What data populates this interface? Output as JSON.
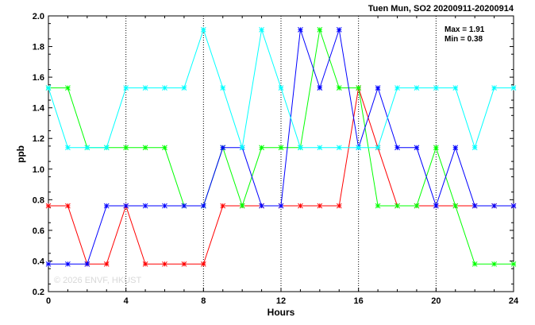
{
  "chart_data": {
    "type": "line",
    "title": "Tuen Mun, SO2 20200911-20200914",
    "xlabel": "Hours",
    "ylabel": "ppb",
    "xlim": [
      0,
      24
    ],
    "ylim": [
      0.2,
      2.0
    ],
    "xticks": [
      "0",
      "4",
      "8",
      "12",
      "16",
      "20",
      "24"
    ],
    "yticks": [
      "0.2",
      "0.4",
      "0.6",
      "0.8",
      "1.0",
      "1.2",
      "1.4",
      "1.6",
      "1.8",
      "2.0"
    ],
    "grid": true,
    "stats": {
      "max_label": "Max = 1.91",
      "min_label": "Min = 0.38"
    },
    "watermark": "© 2026  ENVF, HKUST",
    "x": [
      0,
      1,
      2,
      3,
      4,
      5,
      6,
      7,
      8,
      9,
      10,
      11,
      12,
      13,
      14,
      15,
      16,
      17,
      18,
      19,
      20,
      21,
      22,
      23,
      24
    ],
    "series": [
      {
        "color": "#ff0000",
        "values": [
          0.76,
          0.76,
          0.38,
          0.38,
          0.76,
          0.38,
          0.38,
          0.38,
          0.38,
          0.76,
          0.76,
          0.76,
          0.76,
          0.76,
          0.76,
          0.76,
          1.53,
          1.14,
          0.76,
          0.76,
          0.76,
          0.76,
          0.76,
          0.76,
          0.76
        ]
      },
      {
        "color": "#00ff00",
        "values": [
          1.53,
          1.53,
          1.14,
          1.14,
          1.14,
          1.14,
          1.14,
          0.76,
          0.76,
          1.14,
          0.76,
          1.14,
          1.14,
          1.14,
          1.91,
          1.53,
          1.53,
          0.76,
          0.76,
          0.76,
          1.14,
          0.76,
          0.38,
          0.38,
          0.38
        ]
      },
      {
        "color": "#0000ff",
        "values": [
          0.38,
          0.38,
          0.38,
          0.76,
          0.76,
          0.76,
          0.76,
          0.76,
          0.76,
          1.14,
          1.14,
          0.76,
          0.76,
          1.91,
          1.53,
          1.91,
          1.14,
          1.53,
          1.14,
          1.14,
          0.76,
          1.14,
          0.76,
          0.76,
          0.76
        ]
      },
      {
        "color": "#00ffff",
        "values": [
          1.53,
          1.14,
          1.14,
          1.14,
          1.53,
          1.53,
          1.53,
          1.53,
          1.91,
          1.53,
          1.14,
          1.91,
          1.53,
          1.14,
          1.14,
          1.14,
          1.14,
          1.14,
          1.53,
          1.53,
          1.53,
          1.53,
          1.14,
          1.53,
          1.53
        ]
      }
    ]
  }
}
